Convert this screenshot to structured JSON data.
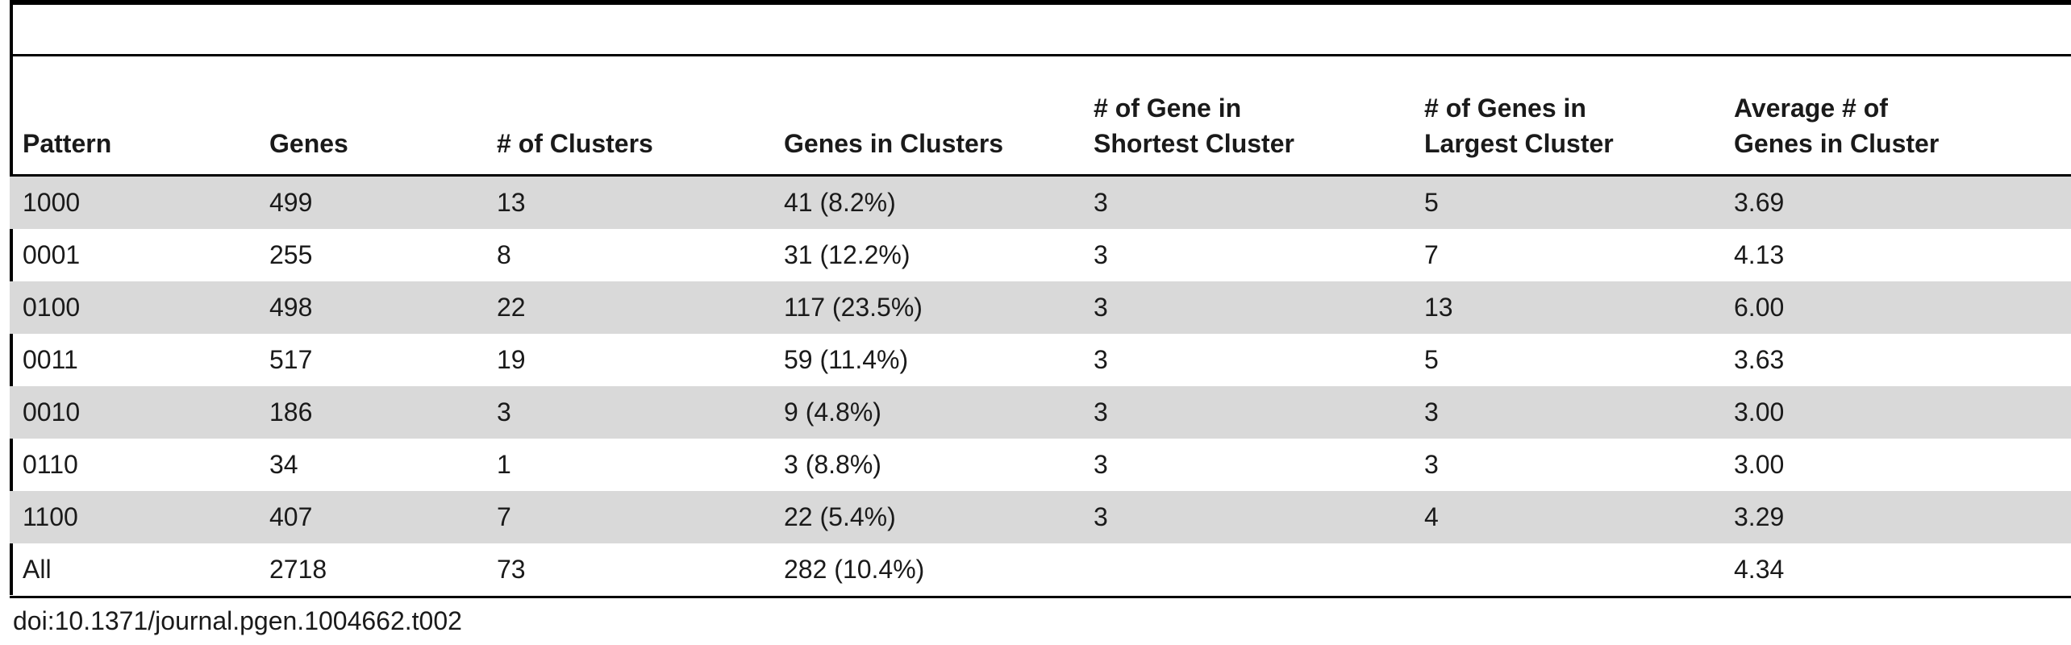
{
  "table": {
    "columns": [
      "Pattern",
      "Genes",
      "# of Clusters",
      "Genes in Clusters",
      [
        "# of Gene in",
        "Shortest Cluster"
      ],
      [
        "# of Genes in",
        "Largest Cluster"
      ],
      [
        "Average # of",
        "Genes in Cluster"
      ]
    ],
    "rows": [
      [
        "1000",
        "499",
        "13",
        "41 (8.2%)",
        "3",
        "5",
        "3.69"
      ],
      [
        "0001",
        "255",
        "8",
        "31 (12.2%)",
        "3",
        "7",
        "4.13"
      ],
      [
        "0100",
        "498",
        "22",
        "117 (23.5%)",
        "3",
        "13",
        "6.00"
      ],
      [
        "0011",
        "517",
        "19",
        "59 (11.4%)",
        "3",
        "5",
        "3.63"
      ],
      [
        "0010",
        "186",
        "3",
        "9 (4.8%)",
        "3",
        "3",
        "3.00"
      ],
      [
        "0110",
        "34",
        "1",
        "3 (8.8%)",
        "3",
        "3",
        "3.00"
      ],
      [
        "1100",
        "407",
        "7",
        "22 (5.4%)",
        "3",
        "4",
        "3.29"
      ],
      [
        "All",
        "2718",
        "73",
        "282 (10.4%)",
        "",
        "",
        "4.34"
      ]
    ]
  },
  "footer": {
    "doi": "doi:10.1371/journal.pgen.1004662.t002"
  },
  "colors": {
    "stripe": "#d9d9d9",
    "rule": "#000000",
    "text": "#1a1a1a"
  }
}
